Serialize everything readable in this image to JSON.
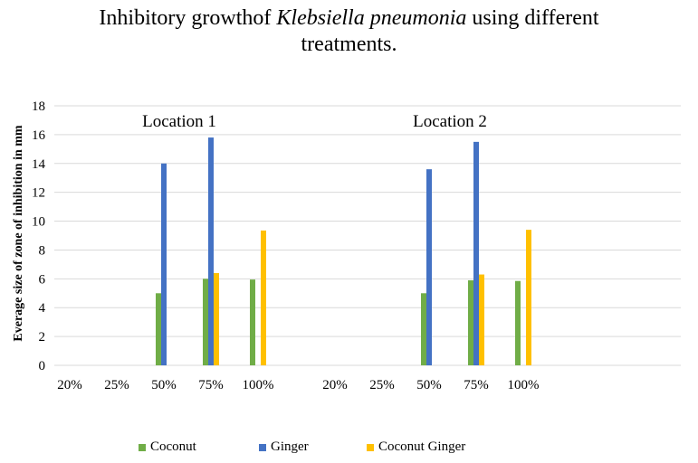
{
  "chart_data": {
    "type": "bar",
    "title_parts": [
      "Inhibitory growth",
      "of ",
      "Klebsiella pneumonia",
      " using different",
      "treatments."
    ],
    "ylabel": "Everage size of zone of inhibition in mm",
    "xlabel": "",
    "ylim": [
      0,
      18
    ],
    "yticks": [
      0,
      2,
      4,
      6,
      8,
      10,
      12,
      14,
      16,
      18
    ],
    "grid": true,
    "groups": [
      {
        "name": "Location 1",
        "categories": [
          "20%",
          "25%",
          "50%",
          "75%",
          "100%"
        ]
      },
      {
        "name": "Location 2",
        "categories": [
          "20%",
          "25%",
          "50%",
          "75%",
          "100%"
        ]
      }
    ],
    "series": [
      {
        "name": "Coconut",
        "color": "#70ad47",
        "values": [
          [
            0,
            0,
            5,
            6,
            5.95
          ],
          [
            0,
            0,
            5,
            5.9,
            5.85
          ]
        ]
      },
      {
        "name": "Ginger",
        "color": "#4472c4",
        "values": [
          [
            0,
            0,
            14,
            15.8,
            0
          ],
          [
            0,
            0,
            13.6,
            15.5,
            0
          ]
        ]
      },
      {
        "name": "Coconut Ginger",
        "color": "#ffc000",
        "values": [
          [
            0,
            0,
            0,
            6.4,
            9.35
          ],
          [
            0,
            0,
            0,
            6.3,
            9.4
          ]
        ]
      }
    ],
    "legend_position": "bottom"
  }
}
